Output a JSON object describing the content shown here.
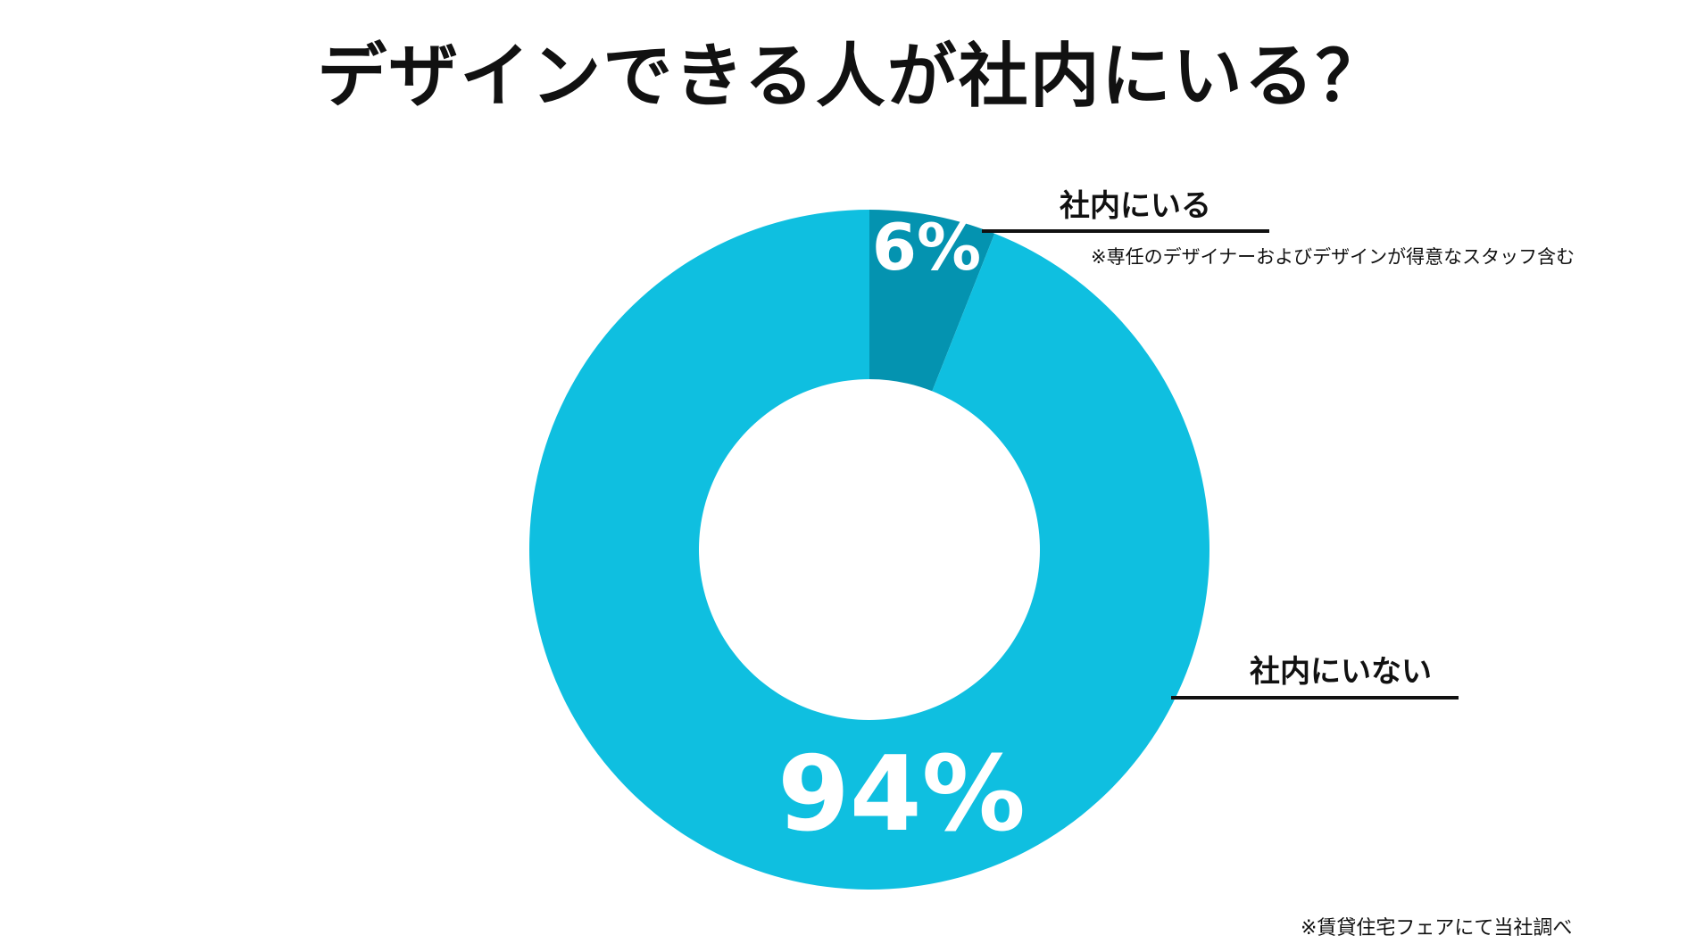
{
  "title": "デザインできる人が社内にいる？",
  "chart_data": {
    "type": "pie",
    "variant": "donut",
    "categories": [
      "社内にいる",
      "社内にいない"
    ],
    "values": [
      6,
      94
    ],
    "value_labels": [
      "6%",
      "94%"
    ],
    "colors": [
      "#0493B0",
      "#0FBFE0"
    ]
  },
  "annotations": {
    "note": "※専任のデザイナーおよびデザインが得意なスタッフ含む",
    "source": "※賃貸住宅フェアにて当社調べ"
  }
}
